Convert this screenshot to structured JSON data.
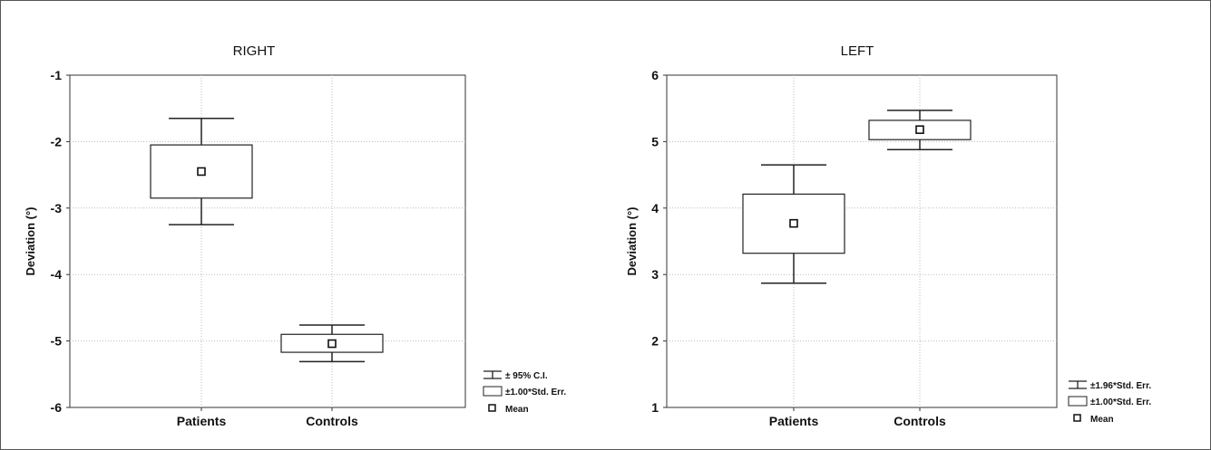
{
  "chart_data": [
    {
      "type": "box",
      "title": "RIGHT",
      "ylabel": "Deviation (°)",
      "categories": [
        "Patients",
        "Controls"
      ],
      "ylim": [
        -6,
        -1
      ],
      "yticks": [
        -6,
        -5,
        -4,
        -3,
        -2,
        -1
      ],
      "grid": true,
      "legend_position": "bottom-right",
      "legend": [
        "± 95% C.I.",
        "±1.00*Std. Err.",
        "Mean"
      ],
      "series": [
        {
          "category": "Patients",
          "mean": -2.45,
          "se_low": -2.85,
          "se_high": -2.05,
          "ci_low": -3.25,
          "ci_high": -1.65
        },
        {
          "category": "Controls",
          "mean": -5.04,
          "se_low": -5.17,
          "se_high": -4.9,
          "ci_low": -5.31,
          "ci_high": -4.76
        }
      ]
    },
    {
      "type": "box",
      "title": "LEFT",
      "ylabel": "Deviation (°)",
      "categories": [
        "Patients",
        "Controls"
      ],
      "ylim": [
        1,
        6
      ],
      "yticks": [
        1,
        2,
        3,
        4,
        5,
        6
      ],
      "grid": true,
      "legend_position": "bottom-right",
      "legend": [
        "±1.96*Std. Err.",
        "±1.00*Std. Err.",
        "Mean"
      ],
      "series": [
        {
          "category": "Patients",
          "mean": 3.77,
          "se_low": 3.32,
          "se_high": 4.21,
          "ci_low": 2.87,
          "ci_high": 4.65
        },
        {
          "category": "Controls",
          "mean": 5.18,
          "se_low": 5.03,
          "se_high": 5.32,
          "ci_low": 4.88,
          "ci_high": 5.47
        }
      ]
    }
  ]
}
